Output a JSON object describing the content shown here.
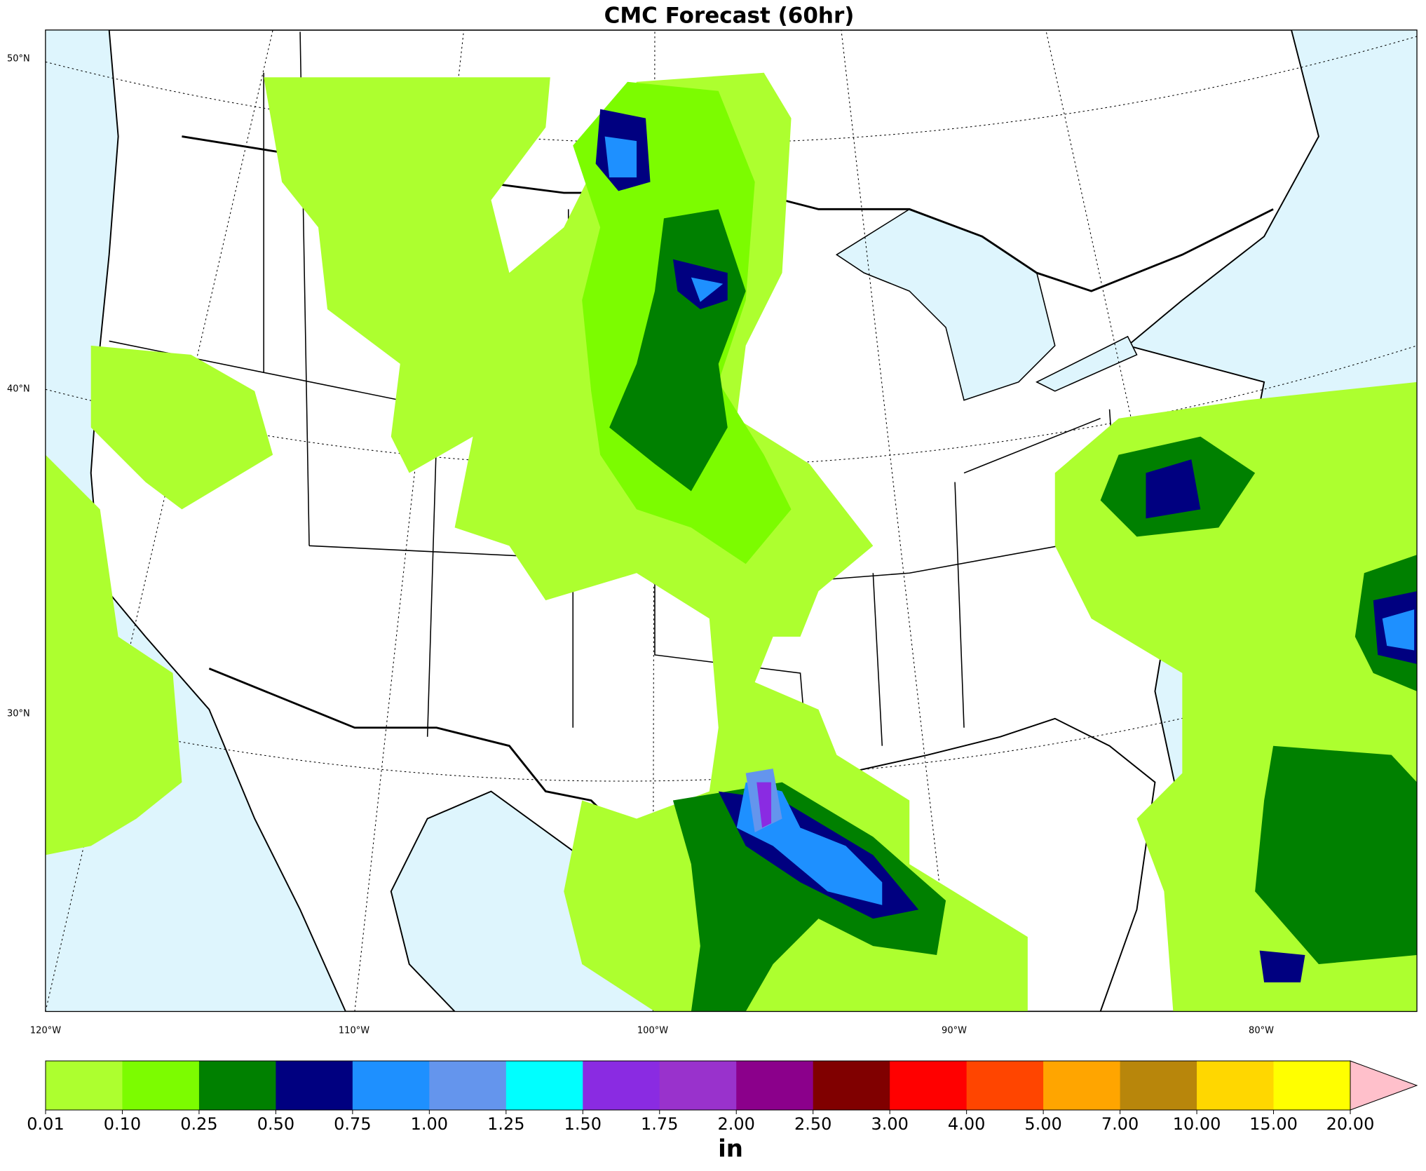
{
  "title": "CMC Forecast (60hr)",
  "lat_labels": [
    "50°N",
    "40°N",
    "30°N"
  ],
  "lon_labels": [
    "120°W",
    "110°W",
    "100°W",
    "90°W",
    "80°W"
  ],
  "colorbar": {
    "levels": [
      {
        "value": 0.01,
        "label": "0.01"
      },
      {
        "value": 0.1,
        "label": "0.10"
      },
      {
        "value": 0.25,
        "label": "0.25"
      },
      {
        "value": 0.5,
        "label": "0.50"
      },
      {
        "value": 0.75,
        "label": "0.75"
      },
      {
        "value": 1,
        "label": "1.00"
      },
      {
        "value": 1.25,
        "label": "1.25"
      },
      {
        "value": 1.5,
        "label": "1.50"
      },
      {
        "value": 1.75,
        "label": "1.75"
      },
      {
        "value": 2,
        "label": "2.00"
      },
      {
        "value": 2.5,
        "label": "2.50"
      },
      {
        "value": 3,
        "label": "3.00"
      },
      {
        "value": 4,
        "label": "4.00"
      },
      {
        "value": 5,
        "label": "5.00"
      },
      {
        "value": 7,
        "label": "7.00"
      },
      {
        "value": 10,
        "label": "10.00"
      },
      {
        "value": 15,
        "label": "15.00"
      },
      {
        "value": 20,
        "label": "20.00"
      }
    ],
    "colors": [
      "#adff2f",
      "#7cfc00",
      "#008000",
      "#000080",
      "#1e90ff",
      "#6495ed",
      "#00ffff",
      "#8a2be2",
      "#9932cc",
      "#8b008b",
      "#800000",
      "#ff0000",
      "#ff4500",
      "#ffa500",
      "#b8860b",
      "#ffd700",
      "#ffff00"
    ],
    "extend_color": "#ffc0cb",
    "unit": "in"
  }
}
